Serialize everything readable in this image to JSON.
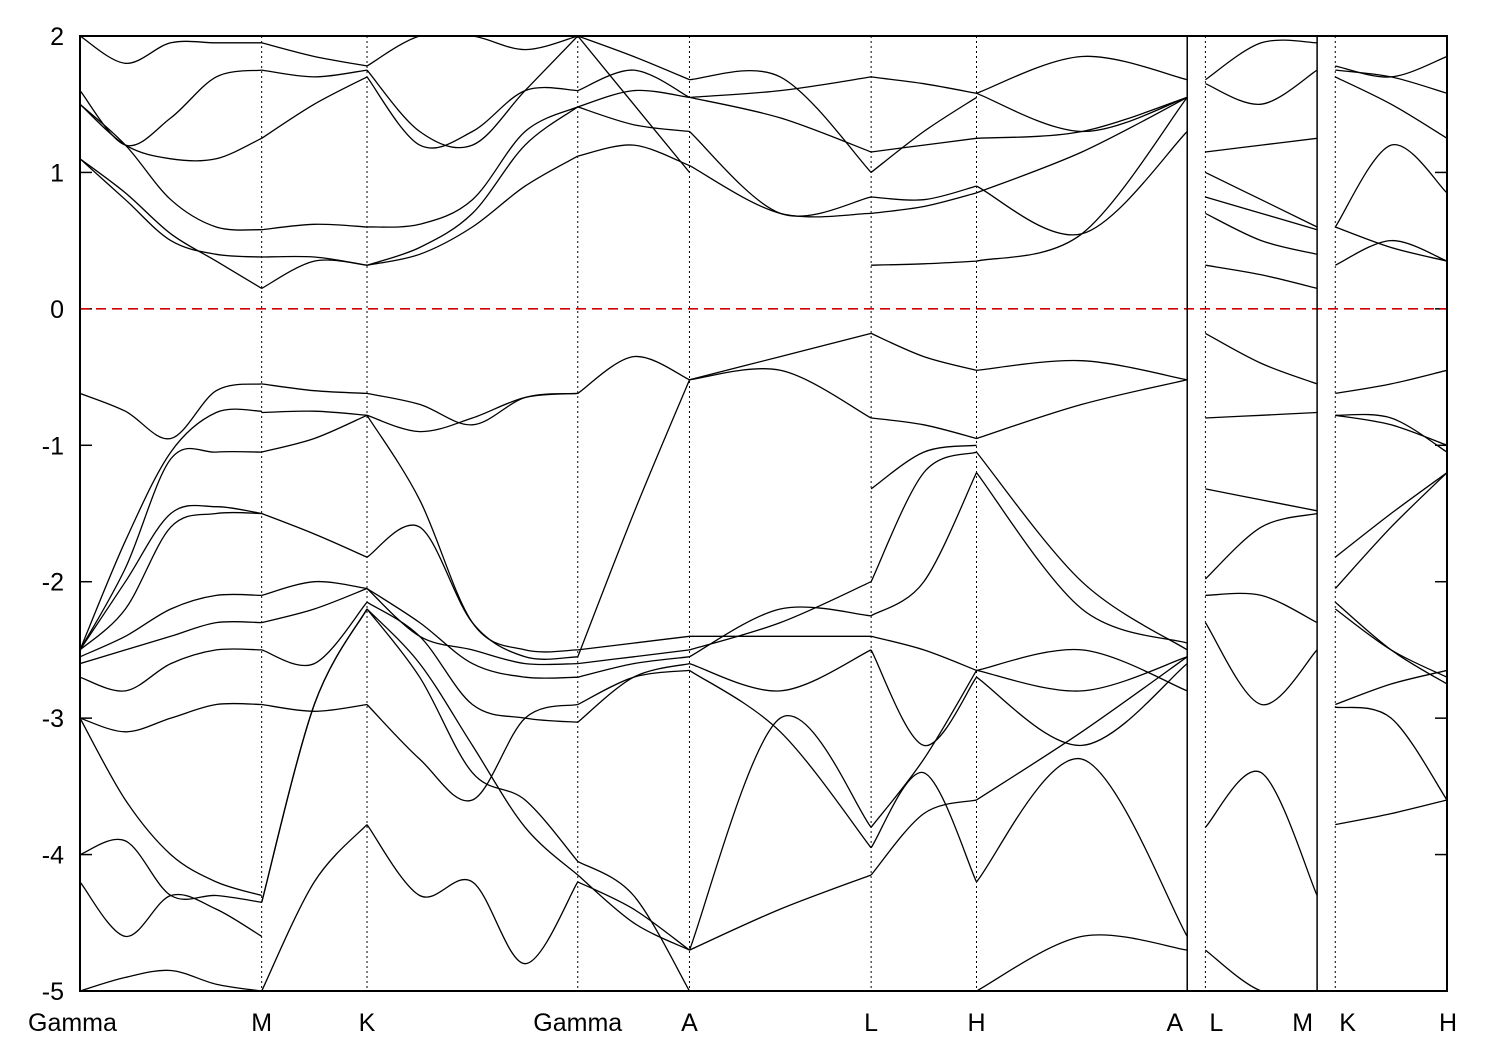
{
  "chart_data": {
    "type": "line",
    "title": "",
    "xlabel": "",
    "ylabel": "",
    "ylim": [
      -5,
      2
    ],
    "yticks": [
      2,
      1,
      0,
      -1,
      -2,
      -3,
      -4,
      -5
    ],
    "ytick_labels": [
      "2",
      "1",
      "0",
      "-1",
      "-2",
      "-3",
      "-4",
      "-5"
    ],
    "high_symmetry_points": [
      {
        "label": "Gamma",
        "x": 0.0
      },
      {
        "label": "M",
        "x": 1.0
      },
      {
        "label": "K",
        "x": 1.58
      },
      {
        "label": "Gamma",
        "x": 2.74
      },
      {
        "label": "A",
        "x": 3.355
      },
      {
        "label": "L",
        "x": 4.355
      },
      {
        "label": "H",
        "x": 4.935
      },
      {
        "label": "A",
        "x": 6.095
      },
      {
        "label": "L",
        "x": 6.195
      },
      {
        "label": "M",
        "x": 6.81
      },
      {
        "label": "K",
        "x": 6.91
      },
      {
        "label": "H",
        "x": 7.525
      }
    ],
    "panel_breaks": [
      6.095,
      6.81
    ],
    "fermi_level": 0,
    "colors": {
      "bands": "#000000",
      "fermi": "#d40000",
      "kline": "#000000"
    },
    "segments": [
      {
        "from": "Gamma",
        "to": "M",
        "bands": [
          [
            -5.0,
            -4.9,
            -4.85,
            -4.95,
            -5.0
          ],
          [
            -4.2,
            -4.6,
            -4.3,
            -4.4,
            -4.6
          ],
          [
            -4.0,
            -3.9,
            -4.3,
            -4.3,
            -4.35
          ],
          [
            -3.0,
            -3.6,
            -4.0,
            -4.2,
            -4.3
          ],
          [
            -3.0,
            -3.1,
            -3.0,
            -2.9,
            -2.9
          ],
          [
            -2.7,
            -2.8,
            -2.6,
            -2.5,
            -2.5
          ],
          [
            -2.6,
            -2.5,
            -2.4,
            -2.3,
            -2.3
          ],
          [
            -2.55,
            -2.4,
            -2.2,
            -2.1,
            -2.1
          ],
          [
            -2.5,
            -2.2,
            -1.6,
            -1.5,
            -1.5
          ],
          [
            -2.5,
            -2.0,
            -1.5,
            -1.45,
            -1.5
          ],
          [
            -2.5,
            -1.9,
            -1.1,
            -1.05,
            -1.05
          ],
          [
            -2.5,
            -1.7,
            -1.05,
            -0.76,
            -0.75
          ],
          [
            -0.62,
            -0.75,
            -0.95,
            -0.6,
            -0.55
          ],
          [
            1.1,
            0.85,
            0.55,
            0.35,
            0.15
          ],
          [
            1.1,
            0.8,
            0.5,
            0.4,
            0.38
          ],
          [
            1.5,
            1.2,
            0.8,
            0.6,
            0.58
          ],
          [
            1.5,
            1.2,
            1.1,
            1.1,
            1.25
          ],
          [
            1.6,
            1.2,
            1.4,
            1.7,
            1.75
          ],
          [
            2.0,
            1.8,
            1.95,
            1.95,
            1.95
          ]
        ]
      },
      {
        "from": "M",
        "to": "K",
        "bands": [
          [
            -5.0,
            -4.2,
            -3.78
          ],
          [
            -4.35,
            -2.9,
            -2.2
          ],
          [
            -4.35,
            -2.9,
            -2.2
          ],
          [
            -2.9,
            -2.95,
            -2.9
          ],
          [
            -2.5,
            -2.6,
            -2.15
          ],
          [
            -2.3,
            -2.2,
            -2.05
          ],
          [
            -2.1,
            -2.0,
            -2.05
          ],
          [
            -1.5,
            -1.65,
            -1.82
          ],
          [
            -1.05,
            -0.95,
            -0.78
          ],
          [
            -0.76,
            -0.75,
            -0.78
          ],
          [
            -0.55,
            -0.6,
            -0.62
          ],
          [
            0.15,
            0.35,
            0.32
          ],
          [
            0.38,
            0.38,
            0.32
          ],
          [
            0.58,
            0.62,
            0.6
          ],
          [
            1.25,
            1.5,
            1.7
          ],
          [
            1.75,
            1.7,
            1.75
          ],
          [
            1.95,
            1.85,
            1.78
          ]
        ]
      },
      {
        "from": "K",
        "to": "Gamma",
        "bands": [
          [
            -3.78,
            -4.3,
            -4.2,
            -4.8,
            -4.2
          ],
          [
            -2.2,
            -2.6,
            -3.2,
            -3.8,
            -4.15
          ],
          [
            -2.2,
            -2.7,
            -3.4,
            -3.6,
            -4.05
          ],
          [
            -2.9,
            -3.3,
            -3.6,
            -3.0,
            -2.9
          ],
          [
            -2.15,
            -2.4,
            -2.9,
            -3.0,
            -3.03
          ],
          [
            -2.05,
            -2.3,
            -2.6,
            -2.7,
            -2.7
          ],
          [
            -2.05,
            -2.4,
            -2.5,
            -2.6,
            -2.6
          ],
          [
            -1.82,
            -1.6,
            -2.3,
            -2.55,
            -2.55
          ],
          [
            -0.78,
            -1.4,
            -2.3,
            -2.5,
            -2.5
          ],
          [
            -0.78,
            -0.9,
            -0.8,
            -0.65,
            -0.62
          ],
          [
            -0.62,
            -0.7,
            -0.85,
            -0.65,
            -0.62
          ],
          [
            0.32,
            0.4,
            0.6,
            0.9,
            1.12
          ],
          [
            0.32,
            0.45,
            0.7,
            1.2,
            1.48
          ],
          [
            0.6,
            0.62,
            0.8,
            1.3,
            1.48
          ],
          [
            1.7,
            1.2,
            1.3,
            1.6,
            1.6
          ],
          [
            1.75,
            1.3,
            1.2,
            1.6,
            2.0
          ],
          [
            1.78,
            2.0,
            2.0,
            1.9,
            2.0
          ]
        ]
      },
      {
        "from": "Gamma",
        "to": "A",
        "bands": [
          [
            -4.2,
            -4.4,
            -4.7
          ],
          [
            -4.15,
            -4.5,
            -4.7
          ],
          [
            -4.05,
            -4.3,
            -5.0
          ],
          [
            -3.03,
            -2.7,
            -2.6
          ],
          [
            -2.9,
            -2.7,
            -2.65
          ],
          [
            -2.7,
            -2.6,
            -2.55
          ],
          [
            -2.6,
            -2.55,
            -2.5
          ],
          [
            -2.55,
            -1.5,
            -0.52
          ],
          [
            -2.5,
            -2.45,
            -2.4
          ],
          [
            -0.62,
            -0.35,
            -0.52
          ],
          [
            1.12,
            1.2,
            1.05
          ],
          [
            1.48,
            1.35,
            1.3
          ],
          [
            1.48,
            1.6,
            1.55
          ],
          [
            1.6,
            1.75,
            1.55
          ],
          [
            2.0,
            1.85,
            1.68
          ],
          [
            2.0,
            1.5,
            1.0
          ]
        ]
      },
      {
        "from": "A",
        "to": "L",
        "bands": [
          [
            -4.7,
            -4.4,
            -4.15
          ],
          [
            -4.7,
            -3.0,
            -3.8
          ],
          [
            -2.65,
            -3.1,
            -3.95
          ],
          [
            -2.6,
            -2.8,
            -2.5
          ],
          [
            -2.55,
            -2.2,
            -2.25
          ],
          [
            -2.5,
            -2.3,
            -2.0
          ],
          [
            -2.4,
            -2.4,
            -2.4
          ],
          [
            -0.52,
            -0.45,
            -0.8
          ],
          [
            -0.52,
            -0.35,
            -0.18
          ],
          [
            1.05,
            0.7,
            0.7
          ],
          [
            1.3,
            0.7,
            0.82
          ],
          [
            1.55,
            1.4,
            1.15
          ],
          [
            1.55,
            1.6,
            1.7
          ],
          [
            1.68,
            1.7,
            1.0
          ]
        ]
      },
      {
        "from": "L",
        "to": "H",
        "bands": [
          [
            -4.15,
            -3.7,
            -3.6
          ],
          [
            -3.95,
            -3.4,
            -4.2
          ],
          [
            -3.8,
            -3.3,
            -2.65
          ],
          [
            -2.5,
            -3.2,
            -2.7
          ],
          [
            -2.4,
            -2.5,
            -2.65
          ],
          [
            -2.25,
            -2.0,
            -1.2
          ],
          [
            -2.0,
            -1.2,
            -1.05
          ],
          [
            -1.32,
            -1.05,
            -1.0
          ],
          [
            -0.8,
            -0.85,
            -0.95
          ],
          [
            -0.18,
            -0.35,
            -0.45
          ],
          [
            0.32,
            0.33,
            0.35
          ],
          [
            0.7,
            0.75,
            0.85
          ],
          [
            0.82,
            0.8,
            0.9
          ],
          [
            1.15,
            1.2,
            1.25
          ],
          [
            1.0,
            1.3,
            1.55
          ],
          [
            1.7,
            1.65,
            1.58
          ]
        ]
      },
      {
        "from": "H",
        "to": "A",
        "bands": [
          [
            -5.0,
            -4.6,
            -4.7
          ],
          [
            -4.2,
            -3.3,
            -4.6
          ],
          [
            -3.6,
            -3.1,
            -2.55
          ],
          [
            -2.7,
            -3.2,
            -2.6
          ],
          [
            -2.65,
            -2.5,
            -2.8
          ],
          [
            -2.65,
            -2.8,
            -2.55
          ],
          [
            -1.2,
            -2.2,
            -2.45
          ],
          [
            -1.05,
            -2.0,
            -2.5
          ],
          [
            -0.95,
            -0.7,
            -0.52
          ],
          [
            -0.45,
            -0.38,
            -0.52
          ],
          [
            0.35,
            0.55,
            1.55
          ],
          [
            0.85,
            1.15,
            1.55
          ],
          [
            0.9,
            0.55,
            1.3
          ],
          [
            1.25,
            1.3,
            1.55
          ],
          [
            1.58,
            1.3,
            1.55
          ],
          [
            1.58,
            1.85,
            1.68
          ]
        ]
      },
      {
        "from": "L",
        "to": "M",
        "bands": [
          [
            -4.7,
            -5.0,
            -5.0
          ],
          [
            -3.8,
            -3.4,
            -4.3
          ],
          [
            -2.3,
            -2.9,
            -2.5
          ],
          [
            -2.1,
            -2.1,
            -2.3
          ],
          [
            -1.98,
            -1.6,
            -1.5
          ],
          [
            -1.32,
            -1.4,
            -1.48
          ],
          [
            -0.8,
            -0.78,
            -0.76
          ],
          [
            -0.18,
            -0.4,
            -0.55
          ],
          [
            0.32,
            0.25,
            0.15
          ],
          [
            0.7,
            0.5,
            0.4
          ],
          [
            0.82,
            0.7,
            0.58
          ],
          [
            1.0,
            0.8,
            0.6
          ],
          [
            1.15,
            1.2,
            1.25
          ],
          [
            1.65,
            1.5,
            1.75
          ],
          [
            1.68,
            1.95,
            1.95
          ]
        ]
      },
      {
        "from": "K",
        "to": "H",
        "bands": [
          [
            -3.78,
            -3.7,
            -3.6
          ],
          [
            -2.92,
            -3.0,
            -3.6
          ],
          [
            -2.9,
            -2.75,
            -2.65
          ],
          [
            -2.2,
            -2.5,
            -2.7
          ],
          [
            -2.15,
            -2.5,
            -2.75
          ],
          [
            -2.05,
            -1.6,
            -1.2
          ],
          [
            -1.82,
            -1.5,
            -1.2
          ],
          [
            -0.78,
            -0.85,
            -1.0
          ],
          [
            -0.78,
            -0.8,
            -1.05
          ],
          [
            -0.62,
            -0.55,
            -0.45
          ],
          [
            0.32,
            0.5,
            0.35
          ],
          [
            0.6,
            1.2,
            0.85
          ],
          [
            0.6,
            0.45,
            0.35
          ],
          [
            1.7,
            1.5,
            1.25
          ],
          [
            1.75,
            1.7,
            1.58
          ],
          [
            1.78,
            1.7,
            1.85
          ]
        ]
      }
    ]
  }
}
